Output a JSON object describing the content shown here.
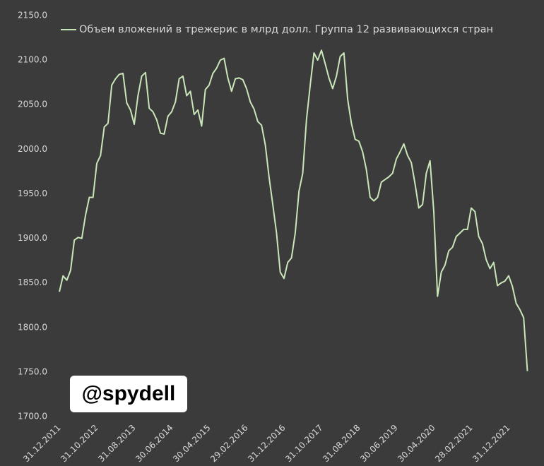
{
  "chart_data": {
    "type": "line",
    "categories": [
      "31.12.2011",
      null,
      null,
      null,
      null,
      null,
      null,
      null,
      null,
      null,
      "31.10.2012",
      null,
      null,
      null,
      null,
      null,
      null,
      null,
      null,
      null,
      "31.08.2013",
      null,
      null,
      null,
      null,
      null,
      null,
      null,
      null,
      null,
      "30.06.2014",
      null,
      null,
      null,
      null,
      null,
      null,
      null,
      null,
      null,
      "30.04.2015",
      null,
      null,
      null,
      null,
      null,
      null,
      null,
      null,
      null,
      "29.02.2016",
      null,
      null,
      null,
      null,
      null,
      null,
      null,
      null,
      null,
      "31.12.2016",
      null,
      null,
      null,
      null,
      null,
      null,
      null,
      null,
      null,
      "31.10.2017",
      null,
      null,
      null,
      null,
      null,
      null,
      null,
      null,
      null,
      "31.08.2018",
      null,
      null,
      null,
      null,
      null,
      null,
      null,
      null,
      null,
      "30.06.2019",
      null,
      null,
      null,
      null,
      null,
      null,
      null,
      null,
      null,
      "30.04.2020",
      null,
      null,
      null,
      null,
      null,
      null,
      null,
      null,
      null,
      "28.02.2021",
      null,
      null,
      null,
      null,
      null,
      null,
      null,
      null,
      null,
      "31.12.2021",
      null,
      null,
      null,
      null,
      null
    ],
    "series": [
      {
        "name": "Объем вложений в трежерис в млрд долл. Группа 12 развивающихся стран",
        "color": "#c9e6b8",
        "values": [
          1840,
          1858,
          1853,
          1864,
          1898,
          1901,
          1900,
          1926,
          1946,
          1946,
          1984,
          1993,
          2025,
          2029,
          2072,
          2079,
          2084,
          2085,
          2052,
          2044,
          2028,
          2060,
          2082,
          2086,
          2046,
          2042,
          2033,
          2018,
          2017,
          2037,
          2042,
          2053,
          2079,
          2082,
          2060,
          2065,
          2039,
          2044,
          2026,
          2067,
          2072,
          2085,
          2091,
          2100,
          2102,
          2080,
          2065,
          2079,
          2080,
          2078,
          2068,
          2053,
          2045,
          2031,
          2027,
          2005,
          1969,
          1938,
          1906,
          1862,
          1855,
          1873,
          1878,
          1906,
          1953,
          1973,
          2033,
          2072,
          2108,
          2100,
          2111,
          2096,
          2080,
          2068,
          2082,
          2104,
          2108,
          2056,
          2029,
          2011,
          2009,
          1997,
          1977,
          1946,
          1942,
          1946,
          1963,
          1966,
          1969,
          1973,
          1989,
          1997,
          2006,
          1993,
          1985,
          1961,
          1934,
          1938,
          1973,
          1987,
          1930,
          1835,
          1862,
          1870,
          1886,
          1890,
          1902,
          1906,
          1910,
          1910,
          1934,
          1930,
          1902,
          1894,
          1876,
          1866,
          1873,
          1847,
          1850,
          1852,
          1858,
          1846,
          1827,
          1820,
          1811,
          1751
        ]
      }
    ],
    "ylim": [
      1700,
      2150
    ],
    "yticks": [
      {
        "value": 1700,
        "label": "1700.0"
      },
      {
        "value": 1750,
        "label": "1750.0"
      },
      {
        "value": 1800,
        "label": "1800.0"
      },
      {
        "value": 1850,
        "label": "1850.0"
      },
      {
        "value": 1900,
        "label": "1900.0"
      },
      {
        "value": 1950,
        "label": "1950.0"
      },
      {
        "value": 2000,
        "label": "2000.0"
      },
      {
        "value": 2050,
        "label": "2050.0"
      },
      {
        "value": 2100,
        "label": "2100.0"
      },
      {
        "value": 2150,
        "label": "2150.0"
      }
    ],
    "legend": "top-left",
    "watermark": "@spydell"
  }
}
